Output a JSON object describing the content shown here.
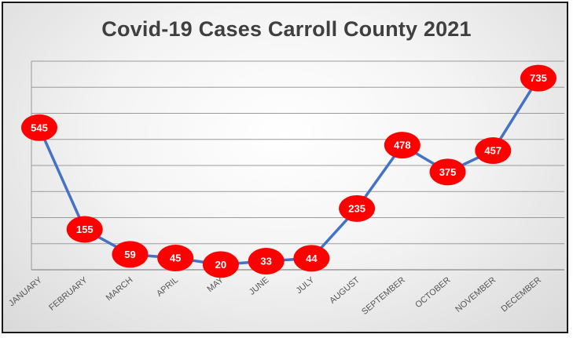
{
  "chart_data": {
    "type": "line",
    "title": "Covid-19 Cases Carroll County 2021",
    "xlabel": "",
    "ylabel": "",
    "ylim": [
      0,
      800
    ],
    "grid": true,
    "categories": [
      "JANUARY",
      "FEBRUARY",
      "MARCH",
      "APRIL",
      "MAY",
      "JUNE",
      "JULY",
      "AUGUST",
      "SEPTEMBER",
      "OCTOBER",
      "NOVEMBER",
      "DECEMBER"
    ],
    "series": [
      {
        "values": [
          545,
          155,
          59,
          45,
          20,
          33,
          44,
          235,
          478,
          375,
          457,
          735
        ]
      }
    ],
    "colors": {
      "line": "#4472c4",
      "marker": "#ff0000",
      "label_text": "#ffffff",
      "grid": "#9a9a9a"
    }
  }
}
